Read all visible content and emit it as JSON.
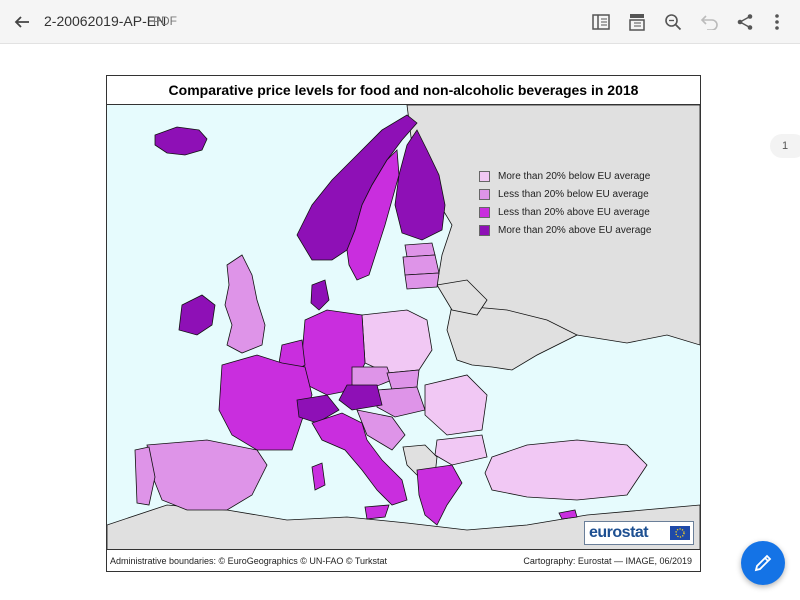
{
  "header": {
    "doc_title": "2-20062019-AP-EN",
    "doc_type": "PDF",
    "icons": [
      "back-arrow-icon",
      "reading-mode-icon",
      "page-layout-icon",
      "search-icon",
      "undo-icon",
      "share-icon",
      "more-vertical-icon"
    ]
  },
  "map": {
    "title": "Comparative price levels for food and non-alcoholic beverages in 2018",
    "legend": [
      {
        "label": "More than 20% below EU average",
        "color": "#f1c8f4"
      },
      {
        "label": "Less than 20% below EU average",
        "color": "#de94e8"
      },
      {
        "label": "Less than 20% above EU average",
        "color": "#c92ede"
      },
      {
        "label": "More than 20% above EU average",
        "color": "#8e10b6"
      }
    ],
    "other_color": "#e0e0e0",
    "sea_color": "#e6fbfd",
    "logo_text": "eurostat",
    "footer_left": "Administrative boundaries: © EuroGeographics © UN-FAO © Turkstat",
    "footer_right": "Cartography: Eurostat — IMAGE, 06/2019"
  },
  "page_indicator": "1",
  "fab_icon": "pencil-icon"
}
